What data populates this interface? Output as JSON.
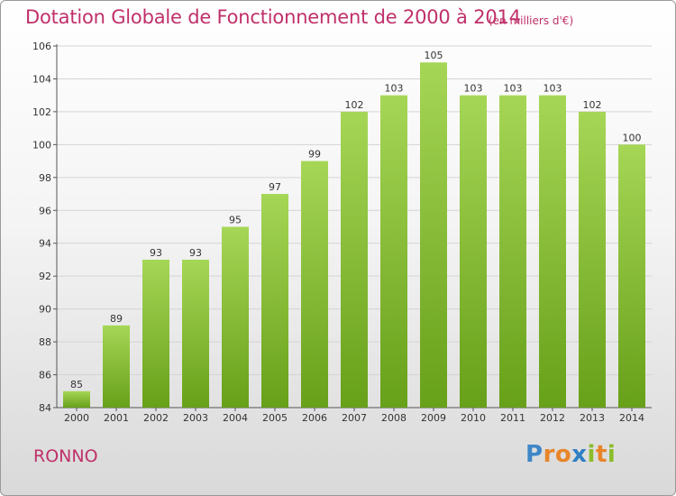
{
  "header": {
    "title": "Dotation Globale de Fonctionnement de 2000 à 2014",
    "subtitle": "(en milliers d'€)"
  },
  "commune": "RONNO",
  "logo": {
    "text": "Proxiti"
  },
  "colors": {
    "title": "#c0306a",
    "bar_light": "#a6d656",
    "bar_dark": "#67a019",
    "grid": "#d4d4d4",
    "axis": "#555555"
  },
  "chart_data": {
    "type": "bar",
    "title": "Dotation Globale de Fonctionnement de 2000 à 2014",
    "subtitle": "(en milliers d'€)",
    "xlabel": "",
    "ylabel": "",
    "categories": [
      "2000",
      "2001",
      "2002",
      "2003",
      "2004",
      "2005",
      "2006",
      "2007",
      "2008",
      "2009",
      "2010",
      "2011",
      "2012",
      "2013",
      "2014"
    ],
    "values": [
      85,
      89,
      93,
      93,
      95,
      97,
      99,
      102,
      103,
      105,
      103,
      103,
      103,
      102,
      100
    ],
    "ylim": [
      84,
      106
    ],
    "yticks": [
      84,
      86,
      88,
      90,
      92,
      94,
      96,
      98,
      100,
      102,
      104,
      106
    ],
    "grid": true,
    "legend": "none",
    "data_labels": true
  }
}
